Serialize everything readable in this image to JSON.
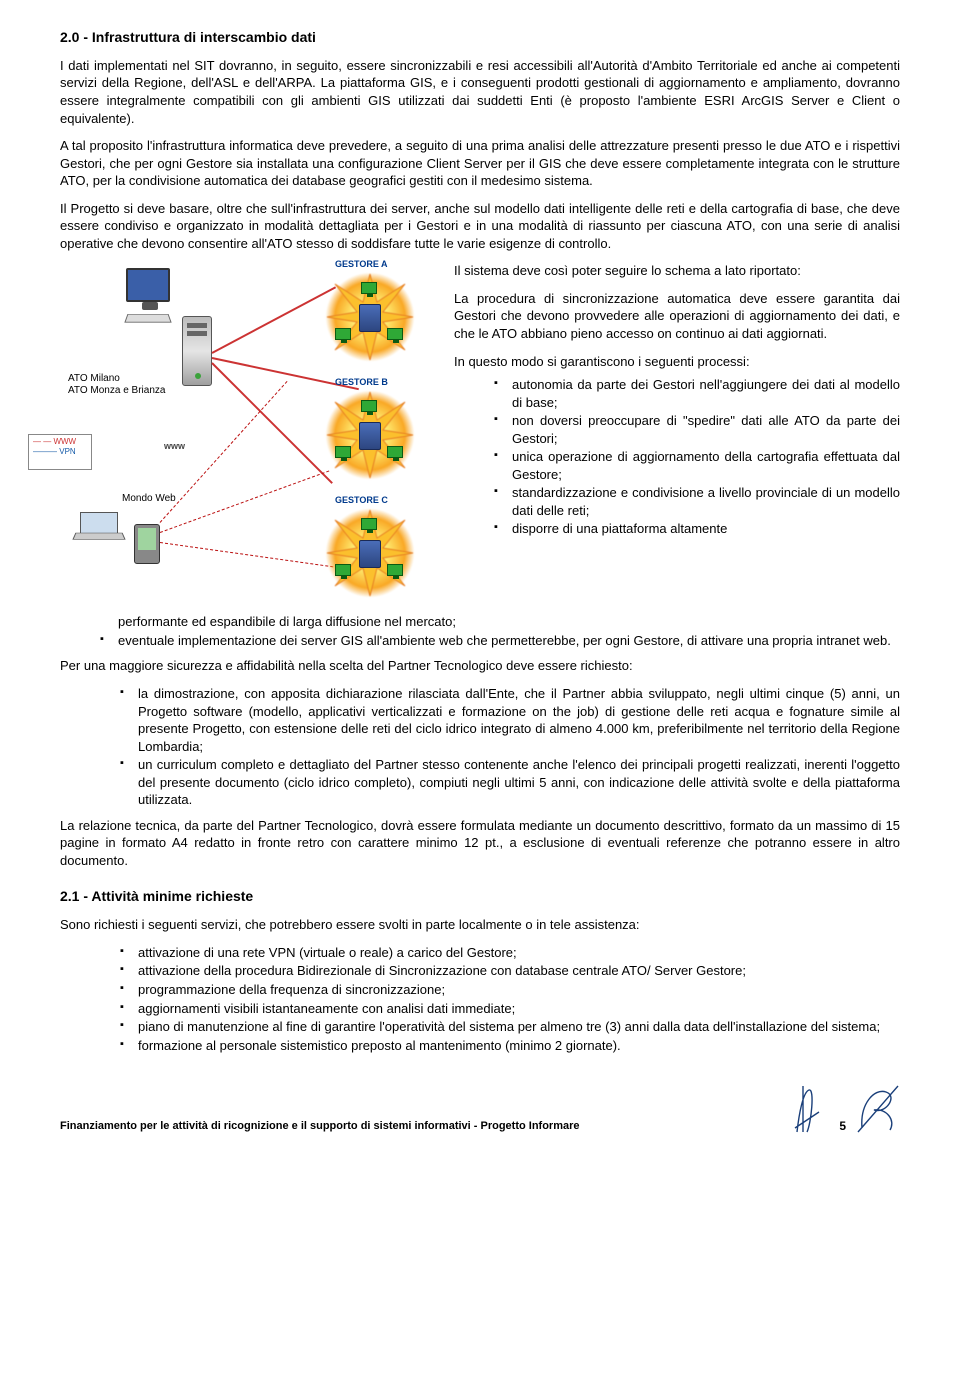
{
  "section_title": "2.0 - Infrastruttura di interscambio dati",
  "p1": "I dati implementati nel SIT dovranno, in seguito, essere sincronizzabili e resi accessibili all'Autorità d'Ambito Territoriale ed anche ai competenti servizi della Regione, dell'ASL e dell'ARPA. La piattaforma GIS, e i conseguenti prodotti gestionali di aggiornamento e ampliamento, dovranno essere integralmente compatibili con gli ambienti GIS utilizzati dai suddetti Enti (è proposto l'ambiente ESRI ArcGIS Server e Client o equivalente).",
  "p2": "A tal proposito l'infrastruttura informatica deve prevedere, a seguito di una prima analisi delle attrezzature presenti presso le due ATO e i rispettivi Gestori, che per ogni Gestore sia installata una configurazione Client Server per il GIS che deve essere completamente integrata con le strutture ATO, per la condivisione automatica dei database geografici gestiti con il medesimo sistema.",
  "p3": "Il Progetto si deve basare, oltre che sull'infrastruttura dei server, anche sul modello dati intelligente delle reti e della cartografia di base, che deve essere condiviso e organizzato in modalità dettagliata per i Gestori e in una modalità di riassunto per ciascuna ATO, con una serie di analisi operative che devono consentire all'ATO stesso di soddisfare tutte le varie esigenze di controllo.",
  "r1": "Il sistema deve così poter seguire lo schema a lato riportato:",
  "r2": "La procedura di sincronizzazione automatica deve essere garantita dai Gestori che devono provvedere alle operazioni di aggiornamento dei dati, e che le ATO abbiano pieno accesso on continuo ai dati aggiornati.",
  "r3": "In questo modo si garantiscono i seguenti processi:",
  "bullets1": [
    "autonomia da parte dei Gestori nell'aggiungere dei dati al modello di base;",
    "non doversi preoccupare di \"spedire\" dati alle ATO da parte dei Gestori;",
    "unica operazione di aggiornamento della cartografia effettuata dal Gestore;",
    "standardizzazione e condivisione a livello provinciale di un modello dati delle reti;",
    "disporre di una piattaforma altamente performante ed espandibile di larga diffusione nel mercato;"
  ],
  "bullets1a": [
    "eventuale implementazione dei server GIS all'ambiente web che permetterebbe, per ogni Gestore, di attivare una propria intranet web."
  ],
  "p4": "Per una maggiore sicurezza e affidabilità nella scelta del Partner Tecnologico deve essere richiesto:",
  "bullets2": [
    "la dimostrazione, con apposita dichiarazione rilasciata dall'Ente, che il Partner abbia sviluppato, negli ultimi cinque (5) anni, un Progetto software (modello, applicativi verticalizzati e formazione on the job) di gestione delle reti acqua e fognature simile al presente Progetto, con estensione delle reti del ciclo idrico integrato di almeno 4.000 km, preferibilmente nel territorio della Regione Lombardia;",
    "un curriculum completo e dettagliato del Partner stesso contenente anche l'elenco dei principali progetti realizzati, inerenti l'oggetto del presente documento (ciclo idrico completo), compiuti negli ultimi 5 anni, con indicazione delle attività svolte e della piattaforma utilizzata."
  ],
  "p5": "La relazione tecnica, da parte del Partner Tecnologico, dovrà essere formulata mediante un documento descrittivo, formato da un massimo di 15 pagine in formato A4 redatto in fronte retro con carattere minimo 12 pt., a esclusione di eventuali referenze che potranno essere in altro documento.",
  "sub_title": "2.1 - Attività minime richieste",
  "p6": "Sono richiesti i seguenti servizi, che potrebbero essere svolti in parte localmente o in tele assistenza:",
  "bullets3": [
    "attivazione di una rete VPN (virtuale o reale) a carico del Gestore;",
    "attivazione della procedura Bidirezionale di Sincronizzazione con database centrale ATO/ Server Gestore;",
    "programmazione della frequenza di sincronizzazione;",
    "aggiornamenti visibili istantaneamente con analisi dati immediate;",
    "piano di manutenzione al fine di garantire l'operatività del sistema per almeno tre (3) anni dalla data dell'installazione del sistema;",
    "formazione al personale sistemistico preposto al mantenimento (minimo 2 giornate)."
  ],
  "footer_text": "Finanziamento per le attività di ricognizione e il supporto di sistemi informativi - Progetto Informare",
  "page_number": "5",
  "diagram": {
    "ato_label1": "ATO Milano",
    "ato_label2": "ATO Monza e Brianza",
    "www_label": "WWW",
    "vpn_label": "VPN",
    "www_center": "www",
    "mondo_web": "Mondo Web",
    "gestore_a": "GESTORE A",
    "gestore_b": "GESTORE B",
    "gestore_c": "GESTORE C"
  }
}
